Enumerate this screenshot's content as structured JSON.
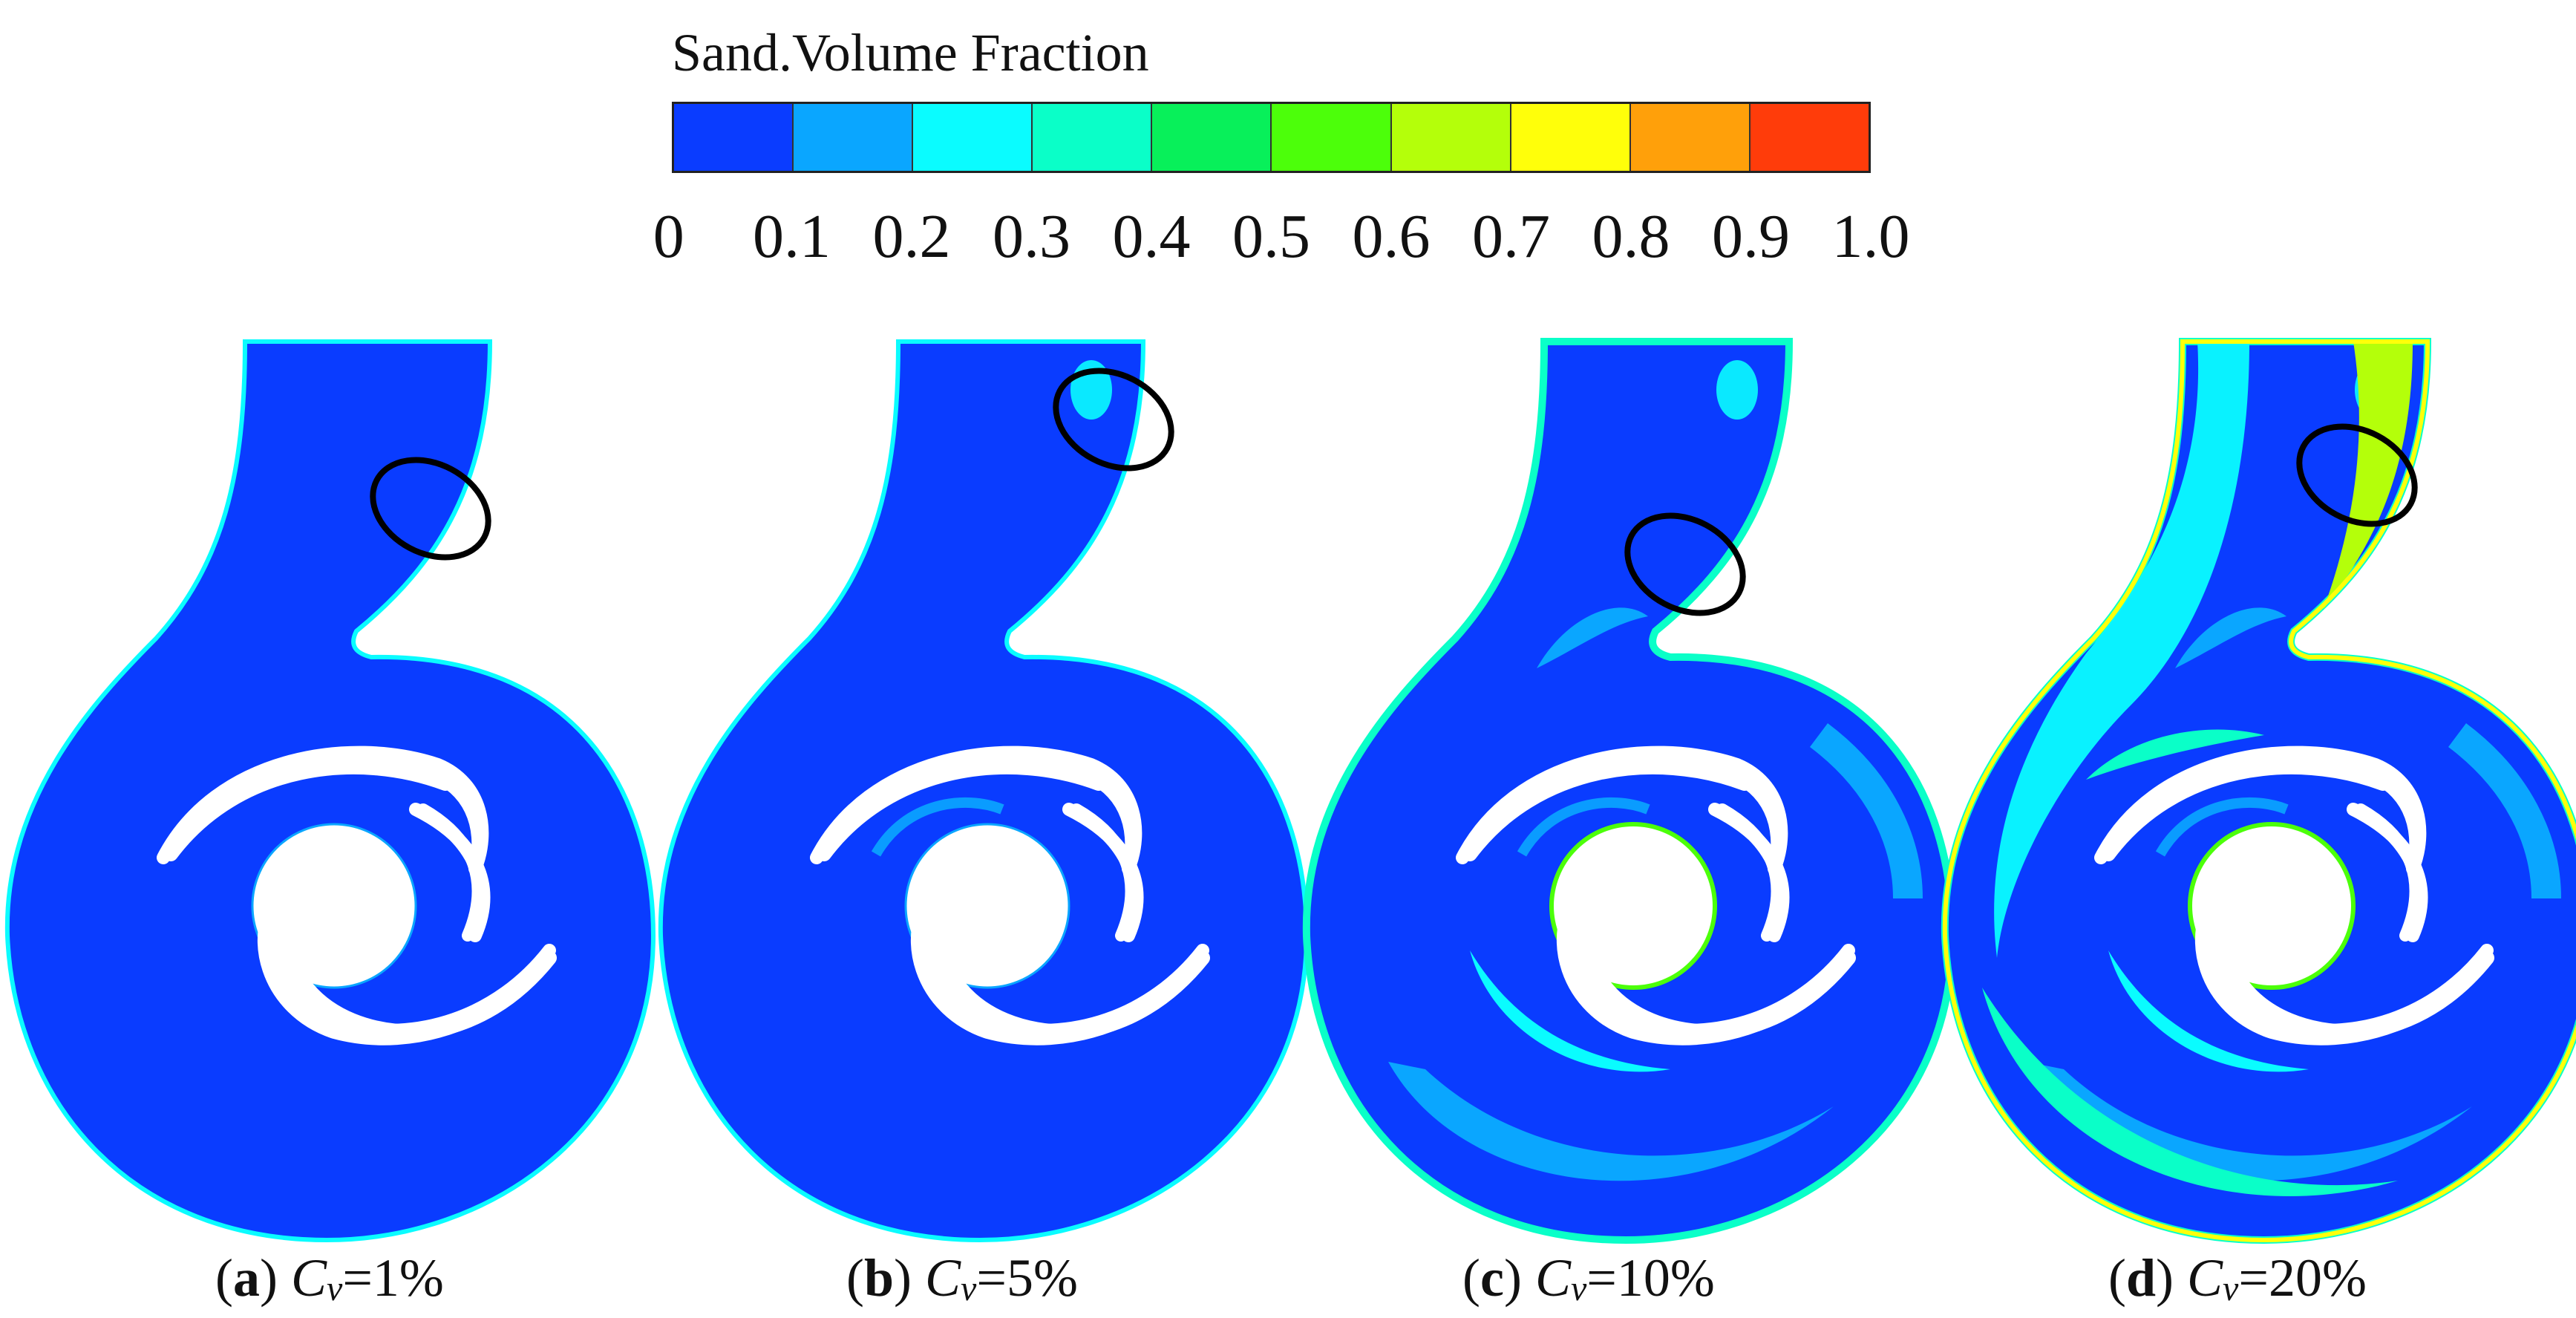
{
  "legend": {
    "title": "Sand.Volume Fraction",
    "colors": [
      "#0a3cff",
      "#0aa6ff",
      "#0afcff",
      "#0affc8",
      "#08f05a",
      "#4cff0a",
      "#b4ff0a",
      "#ffff0a",
      "#ffa00a",
      "#ff3c0a"
    ],
    "ticks": [
      "0",
      "0.1",
      "0.2",
      "0.3",
      "0.4",
      "0.5",
      "0.6",
      "0.7",
      "0.8",
      "0.9",
      "1.0"
    ]
  },
  "panels": [
    {
      "label": "a",
      "var": "C",
      "sub": "v",
      "value": "=1%"
    },
    {
      "label": "b",
      "var": "C",
      "sub": "v",
      "value": "=5%"
    },
    {
      "label": "c",
      "var": "C",
      "sub": "v",
      "value": "=10%"
    },
    {
      "label": "d",
      "var": "C",
      "sub": "v",
      "value": "=20%"
    }
  ]
}
